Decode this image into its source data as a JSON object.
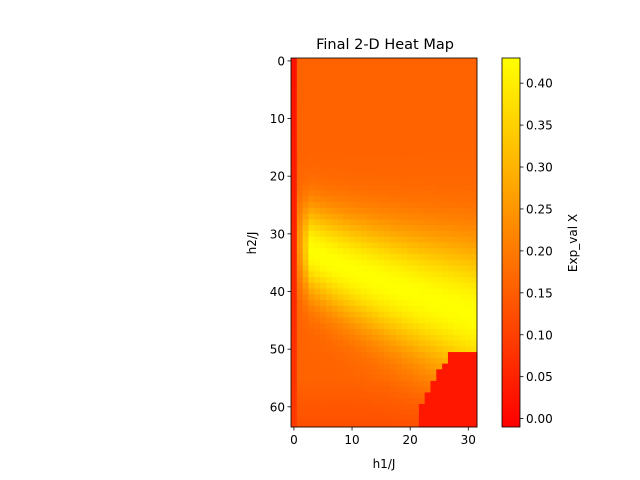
{
  "chart_data": {
    "type": "heatmap",
    "title": "Final 2-D Heat Map",
    "xlabel": "h1/J",
    "ylabel": "h2/J",
    "grid": false,
    "colormap": "autumn",
    "colormap_stops": [
      "#ff0000",
      "#ffff00"
    ],
    "n_cols": 32,
    "n_rows": 64,
    "xlim": [
      -0.5,
      31.5
    ],
    "ylim": [
      63.5,
      -0.5
    ],
    "x_ticks": [
      0,
      10,
      20,
      30
    ],
    "y_ticks": [
      0,
      10,
      20,
      30,
      40,
      50,
      60
    ],
    "colorbar": {
      "label": "Exp_val X",
      "range": [
        -0.01,
        0.43
      ],
      "ticks": [
        0.0,
        0.05,
        0.1,
        0.15,
        0.2,
        0.25,
        0.3,
        0.35,
        0.4
      ],
      "tick_labels": [
        "0.00",
        "0.05",
        "0.10",
        "0.15",
        "0.20",
        "0.25",
        "0.30",
        "0.35",
        "0.40"
      ]
    },
    "value_model": {
      "base_value": 0.16,
      "first_column_value": 0.02,
      "first_column_fade_rows": [
        0,
        64
      ],
      "ridge": {
        "description": "bright band from (h1=0,h2≈32) curving to (h1≈31,h2≈44)",
        "peak_value": 0.43,
        "center_h2_at_h1_0": 31,
        "center_h2_at_h1_31": 44,
        "width_rows": 9
      },
      "low_region": {
        "description": "red patch near bottom-right corner",
        "value": 0.03,
        "h1_range": [
          22,
          31
        ],
        "h2_range": [
          51,
          63
        ]
      }
    }
  }
}
